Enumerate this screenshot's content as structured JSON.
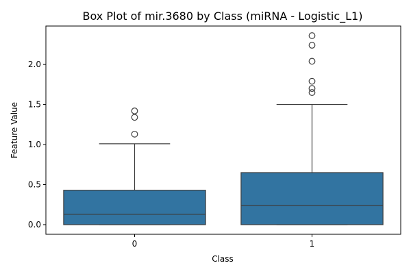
{
  "chart_data": {
    "type": "box",
    "title": "Box Plot of mir.3680 by Class (miRNA - Logistic_L1)",
    "xlabel": "Class",
    "ylabel": "Feature Value",
    "categories": [
      "0",
      "1"
    ],
    "ylim": [
      -0.12,
      2.48
    ],
    "yticks": [
      0.0,
      0.5,
      1.0,
      1.5,
      2.0
    ],
    "ytick_labels": [
      "0.0",
      "0.5",
      "1.0",
      "1.5",
      "2.0"
    ],
    "grid": false,
    "box_color": "#3274a1",
    "boxes": [
      {
        "category": "0",
        "whisker_low": 0.0,
        "q1": 0.0,
        "median": 0.13,
        "q3": 0.43,
        "whisker_high": 1.01,
        "outliers": [
          1.13,
          1.34,
          1.42
        ]
      },
      {
        "category": "1",
        "whisker_low": 0.0,
        "q1": 0.0,
        "median": 0.24,
        "q3": 0.65,
        "whisker_high": 1.5,
        "outliers": [
          1.65,
          1.7,
          1.79,
          2.04,
          2.24,
          2.36
        ]
      }
    ]
  }
}
